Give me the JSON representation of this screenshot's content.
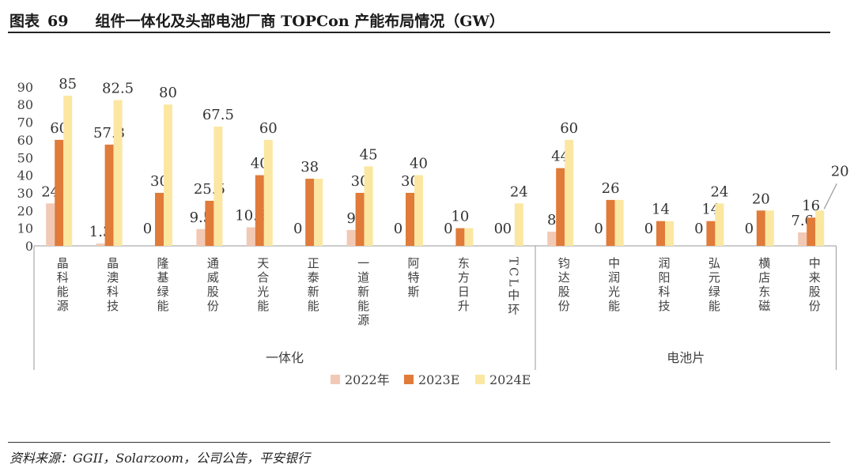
{
  "header": {
    "figure_label": "图表",
    "figure_number": "69",
    "title": "组件一体化及头部电池厂商 TOPCon 产能布局情况（GW）"
  },
  "source": "资料来源：GGII，Solarzoom，公司公告，平安银行",
  "colors": {
    "s2022": "#F2C9B5",
    "s2023": "#E07B39",
    "s2024": "#FBE7A1",
    "axis": "#9a9a9a",
    "text": "#404040"
  },
  "chart_data": {
    "type": "bar",
    "ylim": [
      0,
      90
    ],
    "yticks": [
      0,
      10,
      20,
      30,
      40,
      50,
      60,
      70,
      80,
      90
    ],
    "legend_position": "bottom",
    "grid": false,
    "categories": [
      "晶科能源",
      "晶澳科技",
      "隆基绿能",
      "通威股份",
      "天合光能",
      "正泰新能",
      "一道新能源",
      "阿特斯",
      "东方日升",
      "TCL中环",
      "钧达股份",
      "中润光能",
      "润阳科技",
      "弘元绿能",
      "横店东磁",
      "中来股份"
    ],
    "groups": [
      {
        "label": "一体化",
        "count": 10
      },
      {
        "label": "电池片",
        "count": 6
      }
    ],
    "series": [
      {
        "name": "2022年",
        "values": [
          24,
          1.3,
          0,
          9.5,
          10.5,
          0,
          9,
          0,
          0,
          0,
          8,
          0,
          0,
          0,
          0,
          7.6
        ],
        "labels": [
          "24",
          "1.3",
          "0",
          "9.5",
          "10.5",
          "0",
          "9",
          "0",
          "0",
          "0",
          "8",
          "0",
          "0",
          "0",
          "0",
          "7.6"
        ]
      },
      {
        "name": "2023E",
        "values": [
          60,
          57.3,
          30,
          25.5,
          40,
          38,
          30,
          30,
          10,
          0,
          44,
          26,
          14,
          14,
          20,
          16
        ],
        "labels": [
          "60",
          "57.3",
          "30",
          "25.5",
          "40",
          "38",
          "30",
          "30",
          "10",
          "0",
          "44",
          "26",
          "14",
          "14",
          "20",
          "16"
        ]
      },
      {
        "name": "2024E",
        "values": [
          85,
          82.5,
          80,
          67.5,
          60,
          38,
          45,
          40,
          10,
          24,
          60,
          26,
          14,
          24,
          20,
          20
        ],
        "labels": [
          "85",
          "82.5",
          "80",
          "67.5",
          "60",
          "",
          "45",
          "40",
          "",
          "24",
          "60",
          "",
          "",
          "24",
          "",
          "20"
        ]
      }
    ]
  }
}
